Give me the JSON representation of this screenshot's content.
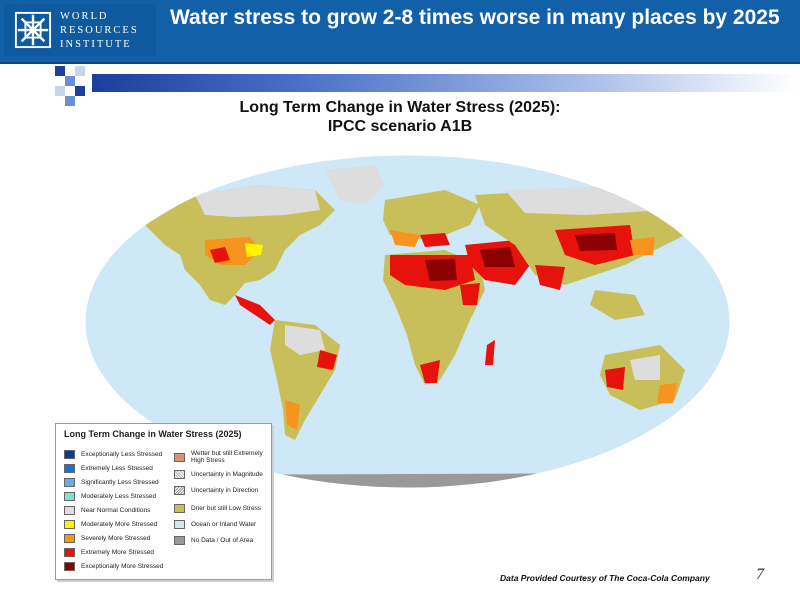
{
  "header": {
    "logo_lines": [
      "WORLD",
      "RESOURCES",
      "INSTITUTE"
    ],
    "title": "Water stress to grow 2-8 times worse in many places by 2025"
  },
  "subtitle": {
    "line1": "Long Term Change in Water Stress (2025):",
    "line2": "IPCC scenario A1B"
  },
  "legend": {
    "title": "Long Term Change in Water Stress (2025)",
    "items_left": [
      {
        "label": "Exceptionally Less Stressed",
        "color": "#0a3f8f"
      },
      {
        "label": "Extremely Less Stressed",
        "color": "#1f6fd1"
      },
      {
        "label": "Significantly Less Stressed",
        "color": "#6fa8e8"
      },
      {
        "label": "Moderately Less Stressed",
        "color": "#7fe0d6"
      },
      {
        "label": "Near Normal Conditions",
        "color": "#dddddd"
      },
      {
        "label": "Moderately More Stressed",
        "color": "#fff200"
      },
      {
        "label": "Severely More Stressed",
        "color": "#f7941d"
      },
      {
        "label": "Extremely More Stressed",
        "color": "#e8120c"
      },
      {
        "label": "Exceptionally More Stressed",
        "color": "#8b0000"
      }
    ],
    "items_right": [
      {
        "label": "Wetter but still Extremely High Stress",
        "color": "#d9946b"
      },
      {
        "label": "Uncertainty in Magnitude",
        "color": "#e4e4e4"
      },
      {
        "label": "Uncertainty in Direction",
        "color": "#cfcfcf"
      },
      {
        "label": "Drier but still Low Stress",
        "color": "#c8bf5a"
      },
      {
        "label": "Ocean or Inland Water",
        "color": "#cfe8f7"
      },
      {
        "label": "No Data / Out of Area",
        "color": "#999999"
      }
    ]
  },
  "credit": "Data Provided Courtesy of The Coca-Cola Company",
  "page_number": "7",
  "colors": {
    "header": "#1261a8",
    "ocean": "#cfe8f7",
    "land_drier": "#c8bf5a",
    "near_normal": "#dddddd",
    "moderate": "#fff200",
    "severe": "#f7941d",
    "extreme": "#e8120c",
    "exceptional": "#8b0000",
    "no_data": "#999999"
  }
}
